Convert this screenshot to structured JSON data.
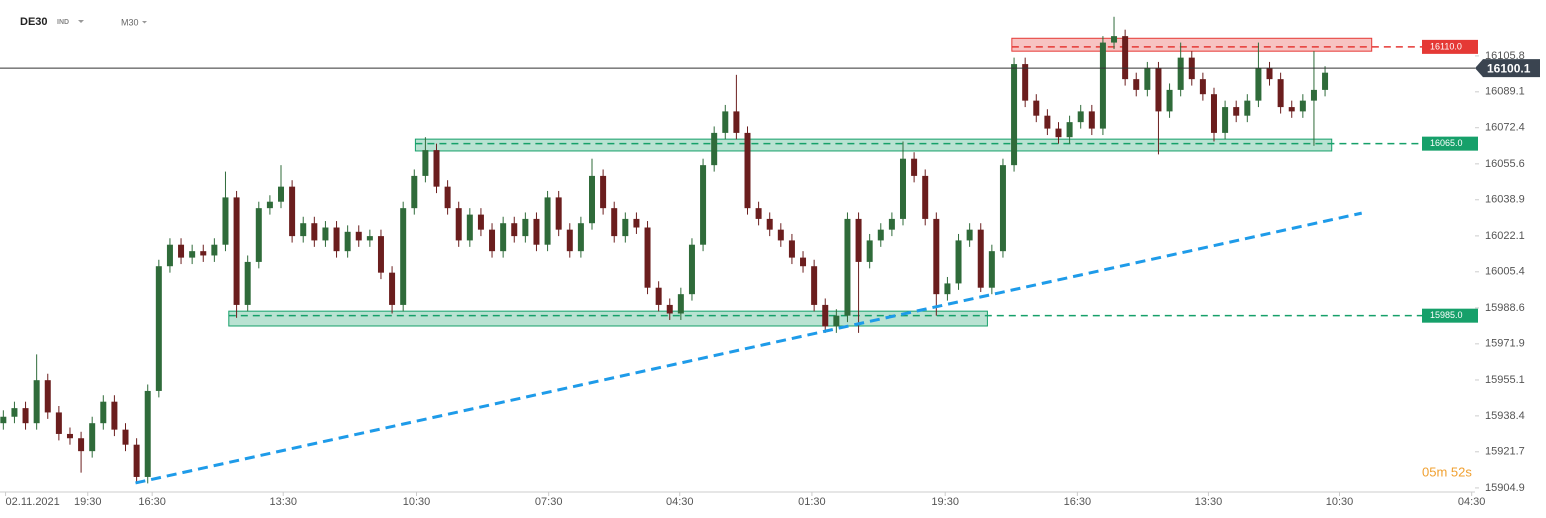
{
  "chart_data": {
    "type": "candlestick",
    "symbol": "DE30",
    "market": "IND",
    "interval": "M30",
    "timer": "05m 52s",
    "last_price": 16100.1,
    "up_color": "#2f6b3a",
    "down_color": "#6b1e1e",
    "ylim": [
      15903.0,
      16131.8
    ],
    "yticks": [
      15904.9,
      15921.7,
      15938.4,
      15955.1,
      15971.9,
      15988.6,
      16005.4,
      16022.1,
      16038.9,
      16055.6,
      16072.4,
      16089.1,
      16105.8
    ],
    "xlim": [
      -0.3,
      132.5
    ],
    "xticks": [
      {
        "value": 0.2,
        "label": "02.11.2021"
      },
      {
        "value": 7.6,
        "label": "19:30"
      },
      {
        "value": 13.4,
        "label": "16:30"
      },
      {
        "value": 25.2,
        "label": "13:30"
      },
      {
        "value": 37.2,
        "label": "10:30"
      },
      {
        "value": 49.1,
        "label": "07:30"
      },
      {
        "value": 60.9,
        "label": "04:30"
      },
      {
        "value": 72.8,
        "label": "01:30"
      },
      {
        "value": 84.8,
        "label": "19:30"
      },
      {
        "value": 96.7,
        "label": "16:30"
      },
      {
        "value": 108.5,
        "label": "13:30"
      },
      {
        "value": 120.3,
        "label": "10:30"
      },
      {
        "value": 132.2,
        "label": "04:30"
      }
    ],
    "zones": [
      {
        "level": 16110,
        "level_label": "16110.0",
        "color": "#e53935",
        "x": [
          90.8,
          123.2
        ],
        "band": [
          16108,
          16114
        ]
      },
      {
        "level": 16065,
        "level_label": "16065.0",
        "color": "#16a06a",
        "x": [
          37.1,
          119.6
        ],
        "band": [
          16061.6,
          16067.1
        ]
      },
      {
        "level": 15985,
        "level_label": "15985.0",
        "color": "#16a06a",
        "x": [
          20.3,
          88.6
        ],
        "band": [
          15980.2,
          15987.1
        ]
      }
    ],
    "trendline": {
      "color": "#1e9be9",
      "x": [
        11.9,
        122.3
      ],
      "y": [
        15907.2,
        16032.7
      ]
    },
    "candles": [
      [
        15935,
        15941,
        15932,
        15938
      ],
      [
        15938,
        15945,
        15935,
        15942
      ],
      [
        15942,
        15945,
        15932,
        15935
      ],
      [
        15935,
        15967,
        15932,
        15955
      ],
      [
        15955,
        15958,
        15937,
        15940
      ],
      [
        15940,
        15943,
        15927,
        15930
      ],
      [
        15930,
        15933,
        15925,
        15928
      ],
      [
        15928,
        15931,
        15912,
        15922
      ],
      [
        15922,
        15938,
        15919,
        15935
      ],
      [
        15935,
        15948,
        15932,
        15945
      ],
      [
        15945,
        15948,
        15929,
        15932
      ],
      [
        15932,
        15935,
        15922,
        15925
      ],
      [
        15925,
        15928,
        15907,
        15910
      ],
      [
        15910,
        15953,
        15907,
        15950
      ],
      [
        15950,
        16011,
        15947,
        16008
      ],
      [
        16008,
        16021,
        16005,
        16018
      ],
      [
        16018,
        16021,
        16009,
        16012
      ],
      [
        16012,
        16018,
        16009,
        16015
      ],
      [
        16015,
        16018,
        16010,
        16013
      ],
      [
        16013,
        16021,
        16010,
        16018
      ],
      [
        16018,
        16052,
        16015,
        16040
      ],
      [
        16040,
        16043,
        15984,
        15990
      ],
      [
        15990,
        16013,
        15987,
        16010
      ],
      [
        16010,
        16038,
        16007,
        16035
      ],
      [
        16035,
        16041,
        16032,
        16038
      ],
      [
        16038,
        16055,
        16035,
        16045
      ],
      [
        16045,
        16048,
        16019,
        16022
      ],
      [
        16022,
        16031,
        16019,
        16028
      ],
      [
        16028,
        16031,
        16017,
        16020
      ],
      [
        16020,
        16029,
        16017,
        16026
      ],
      [
        16026,
        16029,
        16012,
        16015
      ],
      [
        16015,
        16027,
        16012,
        16024
      ],
      [
        16024,
        16027,
        16017,
        16020
      ],
      [
        16020,
        16025,
        16017,
        16022
      ],
      [
        16022,
        16025,
        16002,
        16005
      ],
      [
        16005,
        16008,
        15986,
        15990
      ],
      [
        15990,
        16038,
        15987,
        16035
      ],
      [
        16035,
        16053,
        16032,
        16050
      ],
      [
        16050,
        16068,
        16047,
        16062
      ],
      [
        16062,
        16065,
        16042,
        16045
      ],
      [
        16045,
        16048,
        16032,
        16035
      ],
      [
        16035,
        16038,
        16017,
        16020
      ],
      [
        16020,
        16035,
        16017,
        16032
      ],
      [
        16032,
        16035,
        16022,
        16025
      ],
      [
        16025,
        16028,
        16012,
        16015
      ],
      [
        16015,
        16031,
        16012,
        16028
      ],
      [
        16028,
        16031,
        16019,
        16022
      ],
      [
        16022,
        16033,
        16019,
        16030
      ],
      [
        16030,
        16033,
        16015,
        16018
      ],
      [
        16018,
        16043,
        16015,
        16040
      ],
      [
        16040,
        16043,
        16022,
        16025
      ],
      [
        16025,
        16028,
        16012,
        16015
      ],
      [
        16015,
        16031,
        16012,
        16028
      ],
      [
        16028,
        16058,
        16025,
        16050
      ],
      [
        16050,
        16053,
        16032,
        16035
      ],
      [
        16035,
        16038,
        16019,
        16022
      ],
      [
        16022,
        16033,
        16019,
        16030
      ],
      [
        16030,
        16033,
        16023,
        16026
      ],
      [
        16026,
        16029,
        15995,
        15998
      ],
      [
        15998,
        16001,
        15987,
        15990
      ],
      [
        15990,
        15993,
        15983,
        15986
      ],
      [
        15986,
        15998,
        15983,
        15995
      ],
      [
        15995,
        16021,
        15992,
        16018
      ],
      [
        16018,
        16058,
        16015,
        16055
      ],
      [
        16055,
        16073,
        16052,
        16070
      ],
      [
        16070,
        16083,
        16067,
        16080
      ],
      [
        16080,
        16097,
        16067,
        16070
      ],
      [
        16070,
        16073,
        16032,
        16035
      ],
      [
        16035,
        16038,
        16027,
        16030
      ],
      [
        16030,
        16033,
        16022,
        16025
      ],
      [
        16025,
        16028,
        16017,
        16020
      ],
      [
        16020,
        16023,
        16009,
        16012
      ],
      [
        16012,
        16015,
        16005,
        16008
      ],
      [
        16008,
        16011,
        15987,
        15990
      ],
      [
        15990,
        15993,
        15977,
        15980
      ],
      [
        15980,
        15988,
        15977,
        15985
      ],
      [
        15985,
        16033,
        15982,
        16030
      ],
      [
        16030,
        16033,
        15977,
        16010
      ],
      [
        16010,
        16023,
        16007,
        16020
      ],
      [
        16020,
        16028,
        16017,
        16025
      ],
      [
        16025,
        16033,
        16022,
        16030
      ],
      [
        16030,
        16066,
        16027,
        16058
      ],
      [
        16058,
        16061,
        16047,
        16050
      ],
      [
        16050,
        16053,
        16027,
        16030
      ],
      [
        16030,
        16033,
        15985,
        15995
      ],
      [
        15995,
        16003,
        15992,
        16000
      ],
      [
        16000,
        16023,
        15997,
        16020
      ],
      [
        16020,
        16028,
        16017,
        16025
      ],
      [
        16025,
        16028,
        15996,
        15998
      ],
      [
        15998,
        16018,
        15995,
        16015
      ],
      [
        16015,
        16058,
        16012,
        16055
      ],
      [
        16055,
        16105,
        16052,
        16102
      ],
      [
        16102,
        16105,
        16082,
        16085
      ],
      [
        16085,
        16088,
        16075,
        16078
      ],
      [
        16078,
        16081,
        16069,
        16072
      ],
      [
        16072,
        16075,
        16065,
        16068
      ],
      [
        16068,
        16078,
        16065,
        16075
      ],
      [
        16075,
        16083,
        16072,
        16080
      ],
      [
        16080,
        16083,
        16069,
        16072
      ],
      [
        16072,
        16115,
        16069,
        16112
      ],
      [
        16112,
        16124,
        16109,
        16115
      ],
      [
        16115,
        16118,
        16092,
        16095
      ],
      [
        16095,
        16098,
        16087,
        16090
      ],
      [
        16090,
        16103,
        16087,
        16100
      ],
      [
        16100,
        16103,
        16060,
        16080
      ],
      [
        16080,
        16093,
        16077,
        16090
      ],
      [
        16090,
        16112,
        16087,
        16105
      ],
      [
        16105,
        16108,
        16092,
        16095
      ],
      [
        16095,
        16098,
        16085,
        16088
      ],
      [
        16088,
        16091,
        16066,
        16070
      ],
      [
        16070,
        16085,
        16067,
        16082
      ],
      [
        16082,
        16085,
        16075,
        16078
      ],
      [
        16078,
        16088,
        16075,
        16085
      ],
      [
        16085,
        16112,
        16082,
        16100
      ],
      [
        16100,
        16103,
        16092,
        16095
      ],
      [
        16095,
        16098,
        16079,
        16082
      ],
      [
        16082,
        16085,
        16077,
        16080
      ],
      [
        16080,
        16088,
        16077,
        16085
      ],
      [
        16085,
        16108,
        16064,
        16090
      ],
      [
        16090,
        16101,
        16087,
        16098
      ]
    ]
  }
}
